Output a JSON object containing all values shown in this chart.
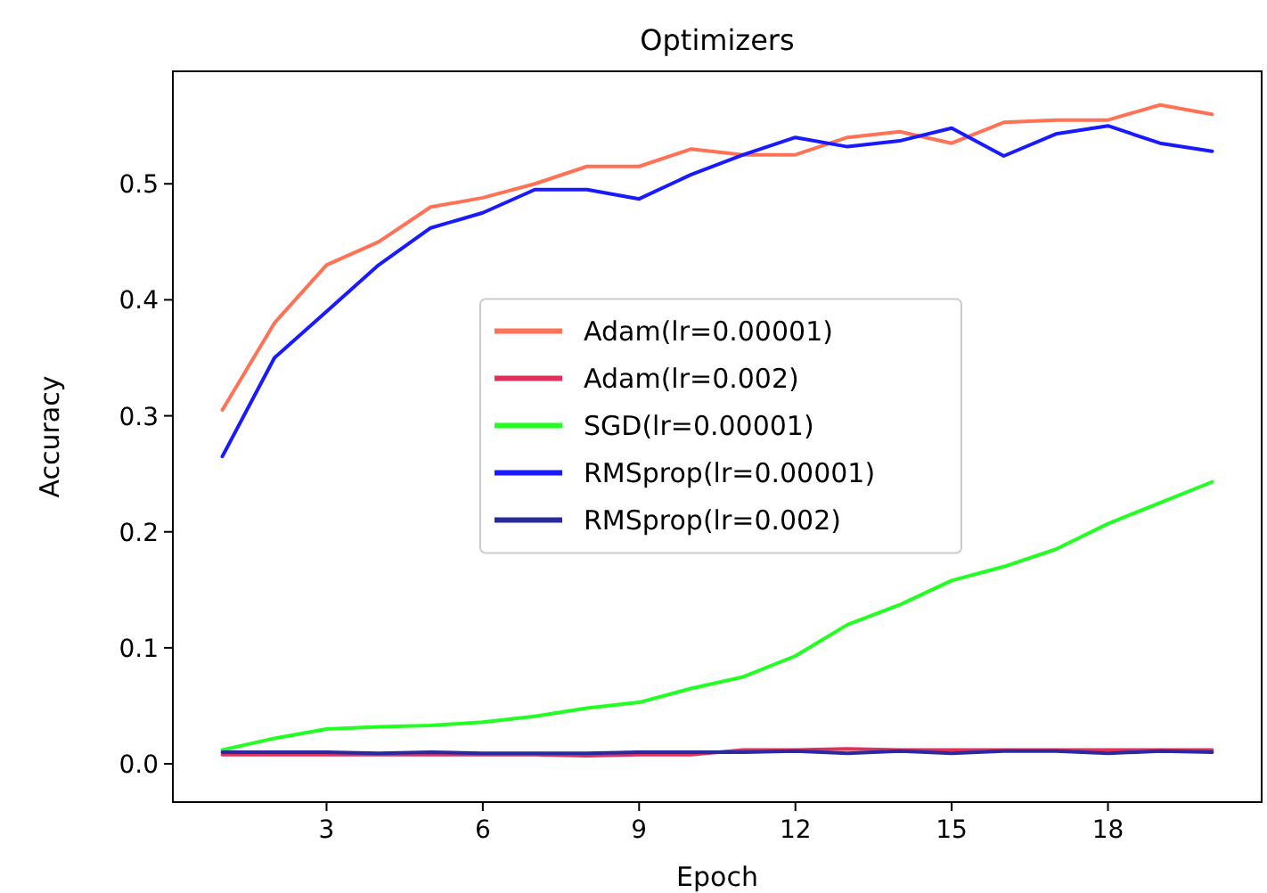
{
  "chart_data": {
    "type": "line",
    "title": "Optimizers",
    "xlabel": "Epoch",
    "ylabel": "Accuracy",
    "x": [
      1,
      2,
      3,
      4,
      5,
      6,
      7,
      8,
      9,
      10,
      11,
      12,
      13,
      14,
      15,
      16,
      17,
      18,
      19,
      20
    ],
    "xlim": [
      0.05,
      20.95
    ],
    "xticks": [
      3,
      6,
      9,
      12,
      15,
      18
    ],
    "ylim": [
      -0.033,
      0.597
    ],
    "yticks": [
      {
        "value": 0,
        "label": "0.0"
      },
      0.1,
      0.2,
      0.3,
      0.4,
      0.5
    ],
    "grid": false,
    "legend": "center",
    "line_style": "solid",
    "marker": "none",
    "series": [
      {
        "name": "Adam(lr=0.00001)",
        "color": "#ff7255",
        "values": [
          0.305,
          0.38,
          0.43,
          0.45,
          0.48,
          0.488,
          0.5,
          0.515,
          0.515,
          0.53,
          0.525,
          0.525,
          0.54,
          0.545,
          0.535,
          0.553,
          0.555,
          0.555,
          0.568,
          0.56
        ]
      },
      {
        "name": "Adam(lr=0.002)",
        "color": "#e0305c",
        "values": [
          0.008,
          0.008,
          0.008,
          0.008,
          0.008,
          0.008,
          0.008,
          0.007,
          0.008,
          0.008,
          0.012,
          0.012,
          0.013,
          0.012,
          0.012,
          0.012,
          0.012,
          0.012,
          0.012,
          0.012
        ]
      },
      {
        "name": "SGD(lr=0.00001)",
        "color": "#22ff22",
        "values": [
          0.012,
          0.022,
          0.03,
          0.032,
          0.033,
          0.036,
          0.041,
          0.048,
          0.053,
          0.065,
          0.075,
          0.093,
          0.12,
          0.137,
          0.158,
          0.17,
          0.185,
          0.207,
          0.225,
          0.243
        ]
      },
      {
        "name": "RMSprop(lr=0.00001)",
        "color": "#1a1aff",
        "values": [
          0.265,
          0.35,
          0.39,
          0.43,
          0.462,
          0.475,
          0.495,
          0.495,
          0.487,
          0.508,
          0.525,
          0.54,
          0.532,
          0.537,
          0.548,
          0.524,
          0.543,
          0.55,
          0.535,
          0.528
        ]
      },
      {
        "name": "RMSprop(lr=0.002)",
        "color": "#2a2aa0",
        "values": [
          0.01,
          0.01,
          0.01,
          0.009,
          0.01,
          0.009,
          0.009,
          0.009,
          0.01,
          0.01,
          0.01,
          0.011,
          0.009,
          0.011,
          0.009,
          0.011,
          0.011,
          0.009,
          0.011,
          0.01
        ]
      }
    ]
  }
}
